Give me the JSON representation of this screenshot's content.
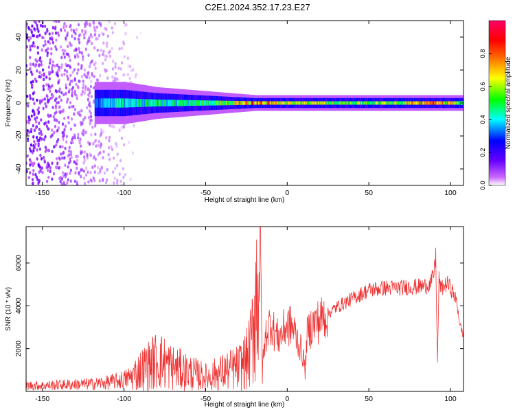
{
  "title": "C2E1.2024.352.17.23.E27",
  "chart_data": [
    {
      "type": "heatmap",
      "title": "C2E1.2024.352.17.23.E27",
      "xlabel": "Height of straight line (km)",
      "ylabel": "Frequency (Hz)",
      "xlim": [
        -160,
        108
      ],
      "ylim": [
        -50,
        50
      ],
      "xticks": [
        -150,
        -100,
        -50,
        0,
        50,
        100
      ],
      "yticks": [
        -40,
        -20,
        0,
        20,
        40
      ],
      "colorbar": {
        "label": "Normalized spectral amplitude",
        "range": [
          0,
          1
        ],
        "ticks": [
          0.0,
          0.2,
          0.4,
          0.6,
          0.8
        ],
        "colormap": [
          "#ffffff",
          "#cc66ff",
          "#6600ff",
          "#0000ff",
          "#00ffff",
          "#00ff00",
          "#ffff00",
          "#ff6600",
          "#ff0000",
          "#ff0066"
        ]
      },
      "noise_region_x": [
        -160,
        -88
      ],
      "band": {
        "center_hz": 0,
        "segments": [
          {
            "x": -118,
            "half_width_hz": 8,
            "amplitude": 0.35
          },
          {
            "x": -100,
            "half_width_hz": 8,
            "amplitude": 0.4
          },
          {
            "x": -80,
            "half_width_hz": 6,
            "amplitude": 0.45
          },
          {
            "x": -60,
            "half_width_hz": 5,
            "amplitude": 0.45
          },
          {
            "x": -40,
            "half_width_hz": 4,
            "amplitude": 0.55
          },
          {
            "x": -20,
            "half_width_hz": 3,
            "amplitude": 0.8
          },
          {
            "x": 0,
            "half_width_hz": 3,
            "amplitude": 0.6
          },
          {
            "x": 20,
            "half_width_hz": 3,
            "amplitude": 0.6
          },
          {
            "x": 50,
            "half_width_hz": 3,
            "amplitude": 0.55
          },
          {
            "x": 70,
            "half_width_hz": 3,
            "amplitude": 0.6
          },
          {
            "x": 90,
            "half_width_hz": 3,
            "amplitude": 0.85
          },
          {
            "x": 108,
            "half_width_hz": 3,
            "amplitude": 0.5
          }
        ]
      }
    },
    {
      "type": "line",
      "xlabel": "Height of straight line (km)",
      "ylabel": "SNR (10 * v/v)",
      "xlim": [
        -160,
        108
      ],
      "ylim": [
        0,
        7700
      ],
      "xticks": [
        -150,
        -100,
        -50,
        0,
        50,
        100
      ],
      "yticks": [
        2000,
        4000,
        6000
      ],
      "series": [
        {
          "color": "#ee3333",
          "x": [
            -160,
            -150,
            -140,
            -130,
            -120,
            -110,
            -100,
            -95,
            -90,
            -85,
            -80,
            -75,
            -70,
            -65,
            -60,
            -55,
            -50,
            -45,
            -40,
            -35,
            -30,
            -25,
            -22,
            -20,
            -18,
            -17,
            -16,
            -15,
            -13,
            -10,
            -8,
            -5,
            -3,
            0,
            3,
            5,
            8,
            10,
            11,
            12,
            15,
            20,
            25,
            30,
            35,
            40,
            45,
            50,
            55,
            60,
            65,
            70,
            75,
            80,
            85,
            88,
            90,
            91,
            92,
            93,
            94,
            95,
            98,
            100,
            102,
            104,
            106,
            108
          ],
          "y": [
            250,
            250,
            280,
            300,
            320,
            380,
            500,
            650,
            900,
            1100,
            1300,
            1200,
            1000,
            900,
            800,
            700,
            600,
            700,
            800,
            900,
            1000,
            1300,
            1900,
            3600,
            4600,
            6800,
            3000,
            1300,
            2600,
            3200,
            2700,
            2400,
            2700,
            3000,
            2900,
            2600,
            2000,
            1500,
            800,
            2500,
            3000,
            3200,
            3600,
            3900,
            4100,
            4300,
            4500,
            4700,
            4750,
            4800,
            4800,
            4800,
            4850,
            4850,
            4900,
            5000,
            5500,
            6300,
            1300,
            5200,
            4800,
            4800,
            5000,
            4800,
            4500,
            4100,
            3000,
            2600
          ]
        }
      ]
    }
  ]
}
